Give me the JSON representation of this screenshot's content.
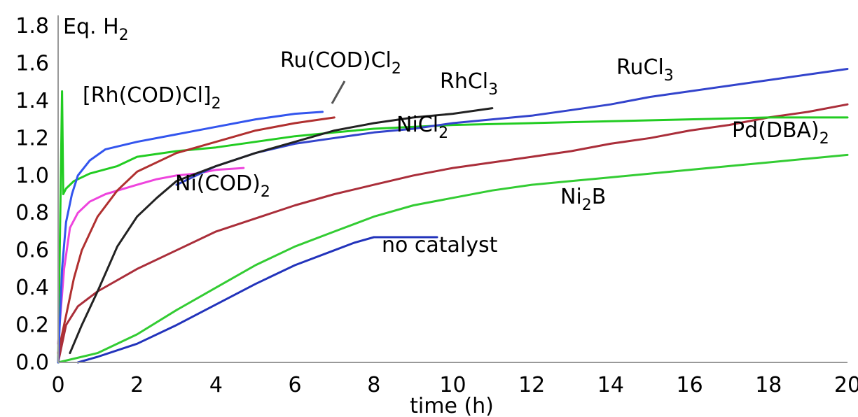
{
  "chart_data": {
    "type": "line",
    "title": "",
    "ylabel": {
      "main": "Eq. H",
      "sub": "2"
    },
    "xlabel": "time (h)",
    "xlim": [
      0,
      20
    ],
    "ylim": [
      0,
      1.8
    ],
    "xticks": [
      "0",
      "2",
      "4",
      "6",
      "8",
      "10",
      "12",
      "14",
      "16",
      "18",
      "20"
    ],
    "yticks": [
      "0.0",
      "0.2",
      "0.4",
      "0.6",
      "0.8",
      "1.0",
      "1.2",
      "1.4",
      "1.6",
      "1.8"
    ],
    "grid": false,
    "series": [
      {
        "name": "[Rh(COD)Cl]2",
        "label": {
          "main": "[Rh(COD)Cl]",
          "sub": "2",
          "post": ""
        },
        "color": "#3355ee",
        "points": [
          [
            0,
            0
          ],
          [
            0.1,
            0.5
          ],
          [
            0.2,
            0.75
          ],
          [
            0.35,
            0.9
          ],
          [
            0.5,
            1.0
          ],
          [
            0.8,
            1.08
          ],
          [
            1.2,
            1.14
          ],
          [
            2,
            1.18
          ],
          [
            3,
            1.22
          ],
          [
            4,
            1.26
          ],
          [
            5,
            1.3
          ],
          [
            6,
            1.33
          ],
          [
            6.7,
            1.34
          ]
        ]
      },
      {
        "name": "Ru(COD)Cl2",
        "label": {
          "main": "Ru(COD)Cl",
          "sub": "2",
          "post": ""
        },
        "color": "#b03030",
        "points": [
          [
            0,
            0.05
          ],
          [
            0.2,
            0.25
          ],
          [
            0.4,
            0.45
          ],
          [
            0.6,
            0.6
          ],
          [
            1,
            0.78
          ],
          [
            1.5,
            0.92
          ],
          [
            2,
            1.02
          ],
          [
            3,
            1.12
          ],
          [
            4,
            1.18
          ],
          [
            5,
            1.24
          ],
          [
            6,
            1.28
          ],
          [
            7,
            1.31
          ]
        ]
      },
      {
        "name": "RhCl3",
        "label": {
          "main": "RhCl",
          "sub": "3",
          "post": ""
        },
        "color": "#222222",
        "points": [
          [
            0.3,
            0.05
          ],
          [
            0.6,
            0.2
          ],
          [
            1,
            0.38
          ],
          [
            1.5,
            0.62
          ],
          [
            2,
            0.78
          ],
          [
            2.5,
            0.88
          ],
          [
            3,
            0.97
          ],
          [
            4,
            1.05
          ],
          [
            5,
            1.12
          ],
          [
            6,
            1.18
          ],
          [
            7,
            1.24
          ],
          [
            8,
            1.28
          ],
          [
            9,
            1.31
          ],
          [
            10,
            1.33
          ],
          [
            11,
            1.36
          ]
        ]
      },
      {
        "name": "RuCl3",
        "label": {
          "main": "RuCl",
          "sub": "3",
          "post": ""
        },
        "color": "#3344cc",
        "points": [
          [
            3,
            0.95
          ],
          [
            4,
            1.05
          ],
          [
            5,
            1.12
          ],
          [
            6,
            1.17
          ],
          [
            7,
            1.2
          ],
          [
            8,
            1.23
          ],
          [
            9,
            1.25
          ],
          [
            10,
            1.28
          ],
          [
            11,
            1.3
          ],
          [
            12,
            1.32
          ],
          [
            13,
            1.35
          ],
          [
            14,
            1.38
          ],
          [
            15,
            1.42
          ],
          [
            16,
            1.45
          ],
          [
            17,
            1.48
          ],
          [
            18,
            1.51
          ],
          [
            19,
            1.54
          ],
          [
            20,
            1.57
          ]
        ]
      },
      {
        "name": "Pd(DBA)2",
        "label": {
          "main": "Pd(DBA)",
          "sub": "2",
          "post": ""
        },
        "color": "#22cc22",
        "points": [
          [
            0,
            0
          ],
          [
            0.1,
            1.45
          ],
          [
            0.13,
            0.9
          ],
          [
            0.2,
            0.93
          ],
          [
            0.4,
            0.97
          ],
          [
            0.8,
            1.01
          ],
          [
            1.5,
            1.05
          ],
          [
            2,
            1.1
          ],
          [
            3,
            1.13
          ],
          [
            4,
            1.15
          ],
          [
            5,
            1.18
          ],
          [
            6,
            1.21
          ],
          [
            7,
            1.23
          ],
          [
            8,
            1.25
          ],
          [
            10,
            1.27
          ],
          [
            12,
            1.28
          ],
          [
            14,
            1.29
          ],
          [
            16,
            1.3
          ],
          [
            18,
            1.31
          ],
          [
            20,
            1.31
          ]
        ]
      },
      {
        "name": "NiCl2",
        "label": {
          "main": "NiCl",
          "sub": "2",
          "post": ""
        },
        "color": "#aa2e3a",
        "points": [
          [
            0,
            0
          ],
          [
            0.2,
            0.2
          ],
          [
            0.5,
            0.3
          ],
          [
            1,
            0.38
          ],
          [
            2,
            0.5
          ],
          [
            3,
            0.6
          ],
          [
            4,
            0.7
          ],
          [
            5,
            0.77
          ],
          [
            6,
            0.84
          ],
          [
            7,
            0.9
          ],
          [
            8,
            0.95
          ],
          [
            9,
            1.0
          ],
          [
            10,
            1.04
          ],
          [
            11,
            1.07
          ],
          [
            12,
            1.1
          ],
          [
            13,
            1.13
          ],
          [
            14,
            1.17
          ],
          [
            15,
            1.2
          ],
          [
            16,
            1.24
          ],
          [
            17,
            1.27
          ],
          [
            18,
            1.31
          ],
          [
            19,
            1.34
          ],
          [
            20,
            1.38
          ]
        ]
      },
      {
        "name": "Ni(COD)2",
        "label": {
          "main": "Ni(COD)",
          "sub": "2",
          "post": ""
        },
        "color": "#ee44dd",
        "points": [
          [
            0,
            0.1
          ],
          [
            0.15,
            0.5
          ],
          [
            0.3,
            0.72
          ],
          [
            0.5,
            0.8
          ],
          [
            0.8,
            0.86
          ],
          [
            1.2,
            0.9
          ],
          [
            2,
            0.95
          ],
          [
            2.5,
            0.98
          ],
          [
            3,
            1.0
          ],
          [
            3.5,
            1.01
          ],
          [
            4,
            1.03
          ],
          [
            4.7,
            1.04
          ]
        ]
      },
      {
        "name": "Ni2B",
        "label": {
          "main": "Ni",
          "sub": "2",
          "post": "B"
        },
        "color": "#33cc33",
        "points": [
          [
            0,
            0
          ],
          [
            1,
            0.05
          ],
          [
            2,
            0.15
          ],
          [
            3,
            0.28
          ],
          [
            4,
            0.4
          ],
          [
            5,
            0.52
          ],
          [
            6,
            0.62
          ],
          [
            7,
            0.7
          ],
          [
            8,
            0.78
          ],
          [
            9,
            0.84
          ],
          [
            10,
            0.88
          ],
          [
            11,
            0.92
          ],
          [
            12,
            0.95
          ],
          [
            13,
            0.97
          ],
          [
            14,
            0.99
          ],
          [
            15,
            1.01
          ],
          [
            16,
            1.03
          ],
          [
            17,
            1.05
          ],
          [
            18,
            1.07
          ],
          [
            19,
            1.09
          ],
          [
            20,
            1.11
          ]
        ]
      },
      {
        "name": "no catalyst",
        "label": {
          "main": "no catalyst",
          "sub": "",
          "post": ""
        },
        "color": "#2233bb",
        "points": [
          [
            0.5,
            0
          ],
          [
            1,
            0.03
          ],
          [
            2,
            0.1
          ],
          [
            3,
            0.2
          ],
          [
            4,
            0.31
          ],
          [
            5,
            0.42
          ],
          [
            6,
            0.52
          ],
          [
            7,
            0.6
          ],
          [
            7.5,
            0.64
          ],
          [
            8,
            0.67
          ],
          [
            9,
            0.67
          ],
          [
            9.6,
            0.67
          ]
        ]
      }
    ]
  }
}
